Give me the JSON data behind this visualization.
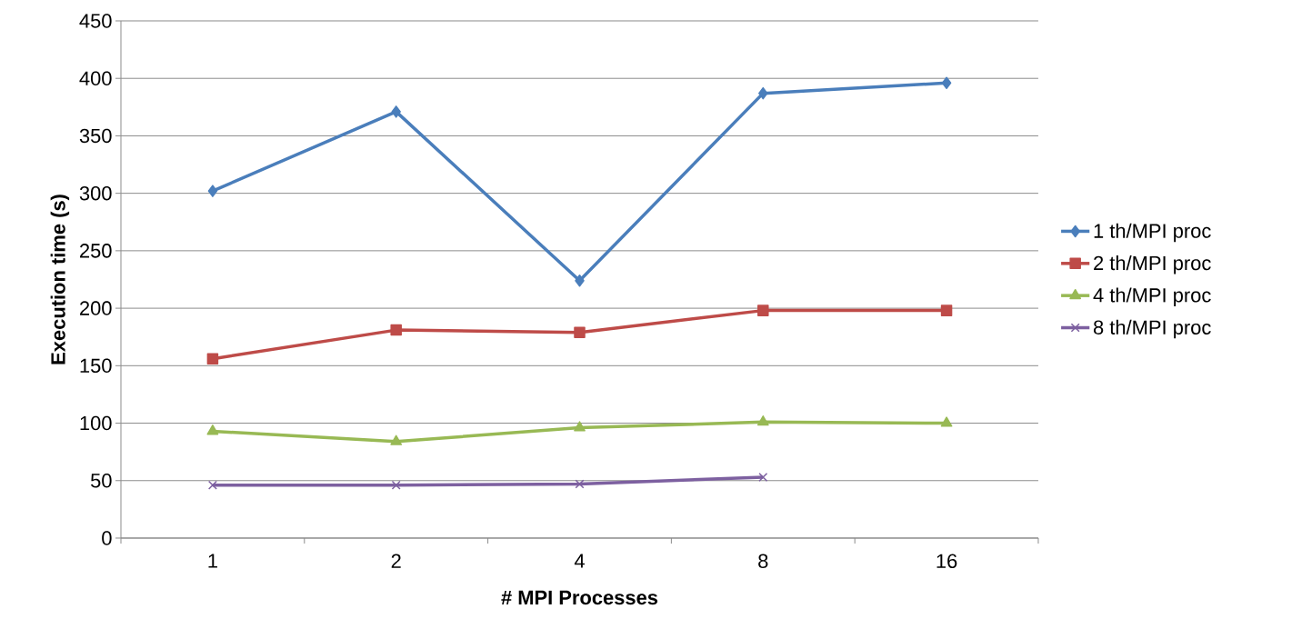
{
  "chart_data": {
    "type": "line",
    "xlabel": "# MPI Processes",
    "ylabel": "Execution time (s)",
    "categories": [
      "1",
      "2",
      "4",
      "8",
      "16"
    ],
    "series": [
      {
        "name": "1 th/MPI proc",
        "color": "#4a7ebb",
        "marker": "diamond",
        "values": [
          302,
          371,
          224,
          387,
          396
        ]
      },
      {
        "name": "2 th/MPI proc",
        "color": "#be4b48",
        "marker": "square",
        "values": [
          156,
          181,
          179,
          198,
          198
        ]
      },
      {
        "name": "4 th/MPI proc",
        "color": "#98b954",
        "marker": "triangle",
        "values": [
          93,
          84,
          96,
          101,
          100
        ]
      },
      {
        "name": "8 th/MPI proc",
        "color": "#7d60a0",
        "marker": "cross",
        "values": [
          46,
          46,
          47,
          53,
          null
        ]
      }
    ],
    "ylim": [
      0,
      450
    ],
    "yticks": [
      0,
      50,
      100,
      150,
      200,
      250,
      300,
      350,
      400,
      450
    ],
    "grid": "y",
    "legend": "right",
    "line_style": "solid"
  }
}
